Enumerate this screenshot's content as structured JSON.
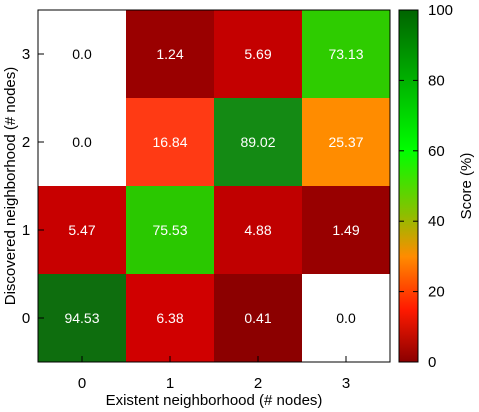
{
  "chart_data": {
    "type": "heatmap",
    "xlabel": "Existent neighborhood (# nodes)",
    "ylabel": "Discovered neighborhood (# nodes)",
    "x_categories": [
      "0",
      "1",
      "2",
      "3"
    ],
    "y_categories": [
      "0",
      "1",
      "2",
      "3"
    ],
    "cells": [
      {
        "x": "0",
        "y": "3",
        "value": 0.0,
        "label": "0.0",
        "color": "#ffffff"
      },
      {
        "x": "1",
        "y": "3",
        "value": 1.24,
        "label": "1.24",
        "color": "#9a0000"
      },
      {
        "x": "2",
        "y": "3",
        "value": 5.69,
        "label": "5.69",
        "color": "#c40000"
      },
      {
        "x": "3",
        "y": "3",
        "value": 73.13,
        "label": "73.13",
        "color": "#2ecc00"
      },
      {
        "x": "0",
        "y": "2",
        "value": 0.0,
        "label": "0.0",
        "color": "#ffffff"
      },
      {
        "x": "1",
        "y": "2",
        "value": 16.84,
        "label": "16.84",
        "color": "#ff3a14"
      },
      {
        "x": "2",
        "y": "2",
        "value": 89.02,
        "label": "89.02",
        "color": "#148a14"
      },
      {
        "x": "3",
        "y": "2",
        "value": 25.37,
        "label": "25.37",
        "color": "#ff8c00"
      },
      {
        "x": "0",
        "y": "1",
        "value": 5.47,
        "label": "5.47",
        "color": "#c80000"
      },
      {
        "x": "1",
        "y": "1",
        "value": 75.53,
        "label": "75.53",
        "color": "#2ac800"
      },
      {
        "x": "2",
        "y": "1",
        "value": 4.88,
        "label": "4.88",
        "color": "#c00000"
      },
      {
        "x": "3",
        "y": "1",
        "value": 1.49,
        "label": "1.49",
        "color": "#980000"
      },
      {
        "x": "0",
        "y": "0",
        "value": 94.53,
        "label": "94.53",
        "color": "#0e6e0e"
      },
      {
        "x": "1",
        "y": "0",
        "value": 6.38,
        "label": "6.38",
        "color": "#d00000"
      },
      {
        "x": "2",
        "y": "0",
        "value": 0.41,
        "label": "0.41",
        "color": "#8c0000"
      },
      {
        "x": "3",
        "y": "0",
        "value": 0.0,
        "label": "0.0",
        "color": "#ffffff"
      }
    ],
    "colorbar": {
      "label": "Score (%)",
      "range": [
        0,
        100
      ],
      "ticks": [
        "0",
        "20",
        "40",
        "60",
        "80",
        "100"
      ],
      "stops": [
        {
          "value": 0,
          "color": "#8b0000"
        },
        {
          "value": 15,
          "color": "#ff1a00"
        },
        {
          "value": 30,
          "color": "#ff8c00"
        },
        {
          "value": 42,
          "color": "#8cbf00"
        },
        {
          "value": 60,
          "color": "#00ff00"
        },
        {
          "value": 100,
          "color": "#006400"
        }
      ]
    },
    "grid": false,
    "legend": "right"
  }
}
